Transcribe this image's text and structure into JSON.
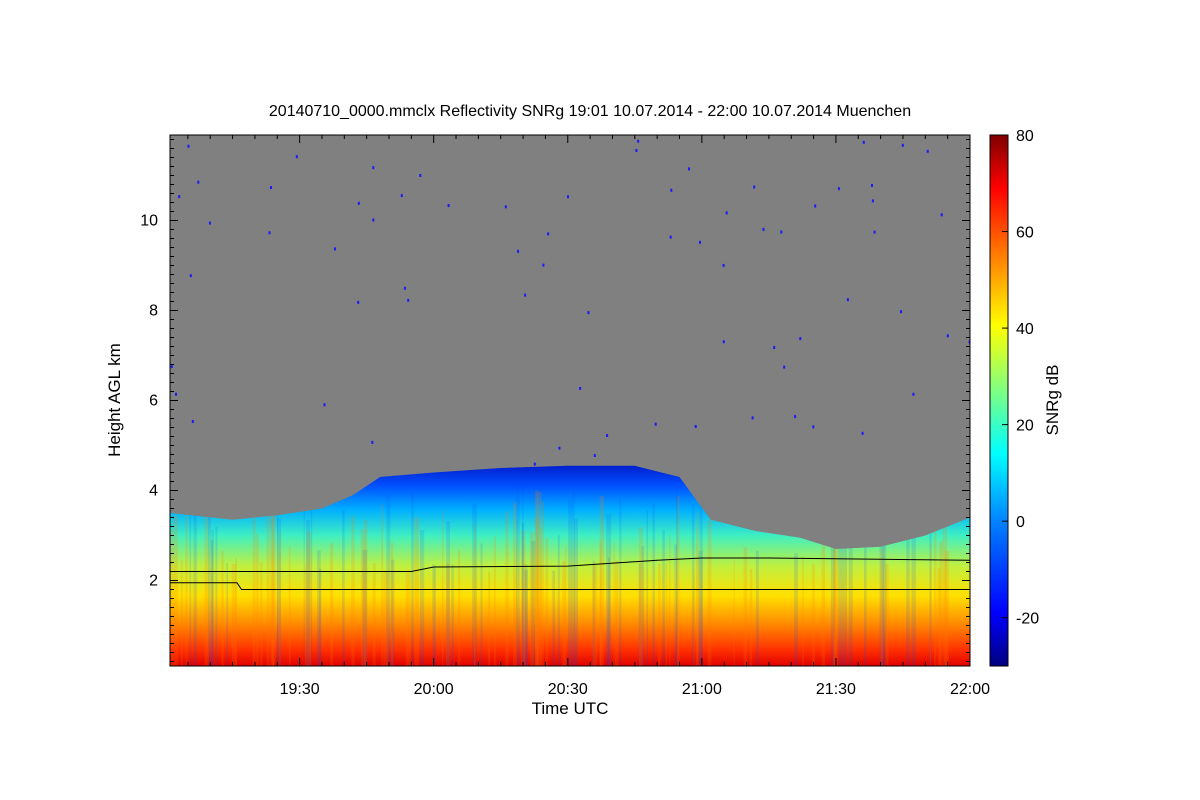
{
  "chart_data": {
    "type": "heatmap",
    "title": "20140710_0000.mmclx Reflectivity SNRg   19:01 10.07.2014 - 22:00 10.07.2014 Muenchen",
    "xlabel": "Time UTC",
    "ylabel": "Height AGL km",
    "xlim_minutes_utc": [
      1141,
      1320
    ],
    "ylim_km": [
      0.1,
      11.9
    ],
    "x_ticks": [
      {
        "label": "19:30",
        "value": 1170
      },
      {
        "label": "20:00",
        "value": 1200
      },
      {
        "label": "20:30",
        "value": 1230
      },
      {
        "label": "21:00",
        "value": 1260
      },
      {
        "label": "21:30",
        "value": 1290
      },
      {
        "label": "22:00",
        "value": 1320
      }
    ],
    "y_ticks": [
      {
        "label": "2",
        "value": 2
      },
      {
        "label": "4",
        "value": 4
      },
      {
        "label": "6",
        "value": 6
      },
      {
        "label": "8",
        "value": 8
      },
      {
        "label": "10",
        "value": 10
      }
    ],
    "colorbar": {
      "label": "SNRg dB",
      "range": [
        -30,
        80
      ],
      "ticks": [
        "-20",
        "0",
        "20",
        "40",
        "60",
        "80"
      ],
      "colors": [
        "#00007f",
        "#0000ff",
        "#0080ff",
        "#00ffff",
        "#80ff80",
        "#ffff00",
        "#ff8000",
        "#ff0000",
        "#7f0000"
      ]
    },
    "no_signal_color": "#808080",
    "cloud_top_km": [
      {
        "t": 1141,
        "h": 3.5
      },
      {
        "t": 1155,
        "h": 3.35
      },
      {
        "t": 1165,
        "h": 3.45
      },
      {
        "t": 1175,
        "h": 3.6
      },
      {
        "t": 1182,
        "h": 3.9
      },
      {
        "t": 1188,
        "h": 4.3
      },
      {
        "t": 1200,
        "h": 4.4
      },
      {
        "t": 1215,
        "h": 4.5
      },
      {
        "t": 1230,
        "h": 4.55
      },
      {
        "t": 1245,
        "h": 4.55
      },
      {
        "t": 1255,
        "h": 4.3
      },
      {
        "t": 1262,
        "h": 3.35
      },
      {
        "t": 1272,
        "h": 3.1
      },
      {
        "t": 1282,
        "h": 2.95
      },
      {
        "t": 1290,
        "h": 2.7
      },
      {
        "t": 1300,
        "h": 2.75
      },
      {
        "t": 1310,
        "h": 3.0
      },
      {
        "t": 1320,
        "h": 3.4
      }
    ],
    "line_upper_km": [
      {
        "t": 1141,
        "h": 2.2
      },
      {
        "t": 1195,
        "h": 2.2
      },
      {
        "t": 1200,
        "h": 2.3
      },
      {
        "t": 1230,
        "h": 2.32
      },
      {
        "t": 1250,
        "h": 2.45
      },
      {
        "t": 1260,
        "h": 2.5
      },
      {
        "t": 1275,
        "h": 2.5
      },
      {
        "t": 1320,
        "h": 2.45
      }
    ],
    "line_lower_km": [
      {
        "t": 1141,
        "h": 1.95
      },
      {
        "t": 1156,
        "h": 1.95
      },
      {
        "t": 1157,
        "h": 1.8
      },
      {
        "t": 1320,
        "h": 1.8
      }
    ]
  }
}
